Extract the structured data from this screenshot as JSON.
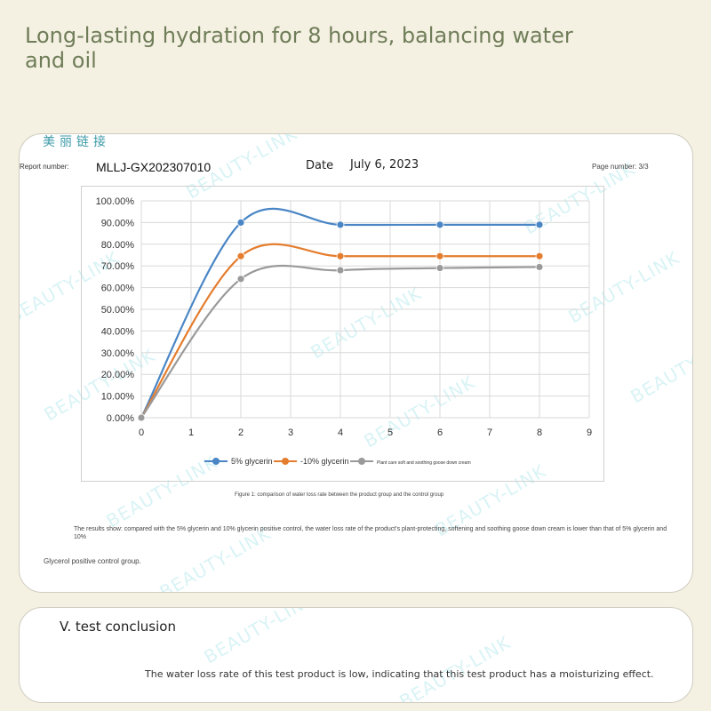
{
  "headline": "Long-lasting hydration for 8 hours, balancing water and oil",
  "report": {
    "logo_cn": "美丽链接",
    "watermark": "BEAUTY-LINK",
    "number_label": "Report number:",
    "number_value": "MLLJ-GX202307010",
    "date_label": "Date",
    "date_value": "July 6, 2023",
    "page_label": "Page number: 3/3"
  },
  "chart_data": {
    "type": "line",
    "title": "",
    "xlabel": "",
    "ylabel": "",
    "x": [
      0,
      2,
      4,
      6,
      8
    ],
    "x_ticks": [
      "0",
      "1",
      "2",
      "3",
      "4",
      "5",
      "6",
      "7",
      "8",
      "9"
    ],
    "y_ticks": [
      "0.00%",
      "10.00%",
      "20.00%",
      "30.00%",
      "40.00%",
      "50.00%",
      "60.00%",
      "70.00%",
      "80.00%",
      "90.00%",
      "100.00%"
    ],
    "xlim": [
      0,
      9
    ],
    "ylim": [
      0,
      100
    ],
    "grid": true,
    "legend_position": "bottom",
    "series": [
      {
        "name": "5% glycerin",
        "color": "#4a86c5",
        "values": [
          0,
          90,
          89,
          89,
          89
        ]
      },
      {
        "name": "-10% glycerin",
        "color": "#e47d2e",
        "values": [
          0,
          74.5,
          74.5,
          74.5,
          74.5
        ]
      },
      {
        "name": "Plant care soft and soothing goose down cream",
        "color": "#9a9a9a",
        "values": [
          0,
          64,
          68,
          69,
          69.5
        ]
      }
    ]
  },
  "caption": "Figure 1: comparison of water loss rate between the product group and the control group",
  "results_text": "The results show: compared with the 5% glycerin and 10% glycerin positive control, the water loss rate of the product's plant-protecting, softening and soothing goose down cream is lower than that of 5% glycerin and 10%",
  "glycerol_text": "Glycerol positive control group.",
  "conclusion": {
    "title": "V. test conclusion",
    "text": "The water loss rate of this test product is low, indicating that this test product has a moisturizing effect."
  }
}
